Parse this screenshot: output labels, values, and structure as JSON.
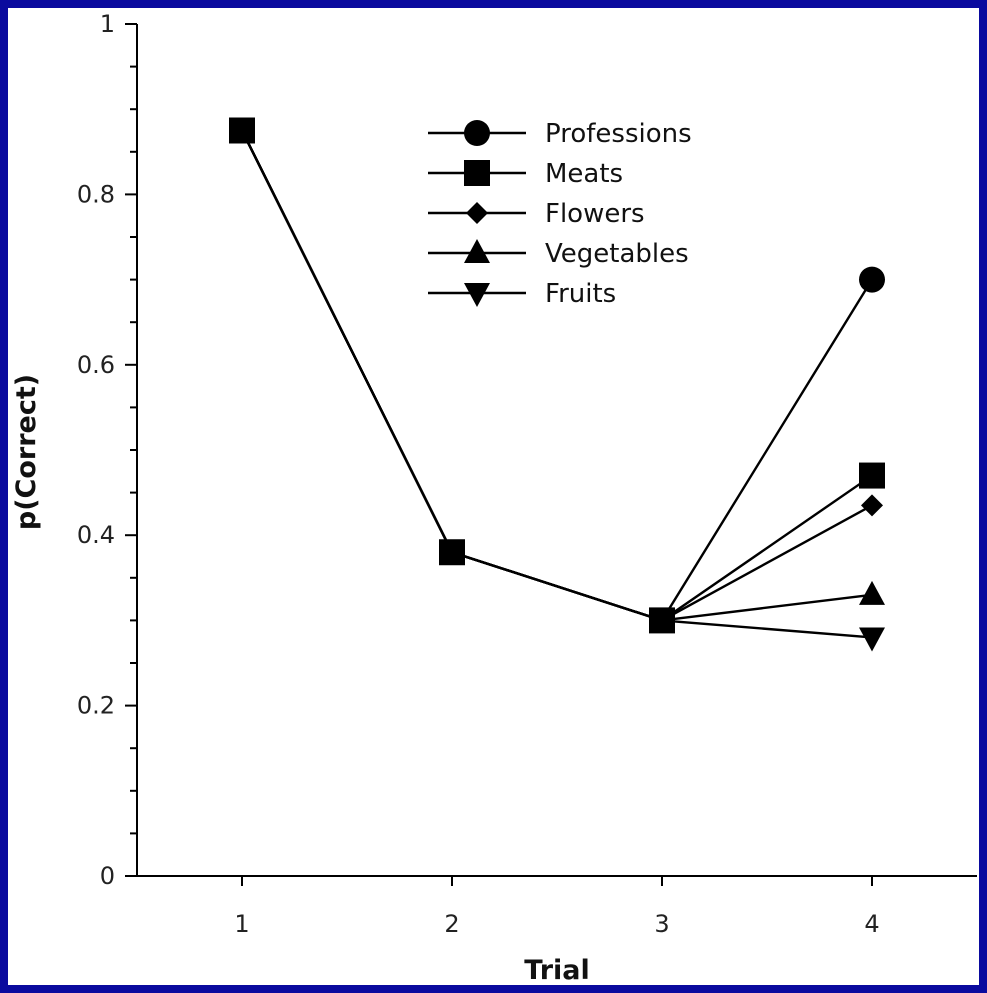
{
  "chart_data": {
    "type": "line",
    "xlabel": "Trial",
    "ylabel": "p(Correct)",
    "x": [
      1,
      2,
      3,
      4
    ],
    "xlim": [
      0.5,
      4.5
    ],
    "ylim": [
      0,
      1
    ],
    "yticks": [
      0,
      0.2,
      0.4,
      0.6,
      0.8,
      1
    ],
    "ytick_labels": [
      "0",
      "0.2",
      "0.4",
      "0.6",
      "0.8",
      "1"
    ],
    "xtick_labels": [
      "1",
      "2",
      "3",
      "4"
    ],
    "legend_position": "top-center",
    "grid": false,
    "series": [
      {
        "name": "Professions",
        "marker": "circle",
        "values": [
          0.875,
          0.38,
          0.3,
          0.7
        ]
      },
      {
        "name": "Meats",
        "marker": "square",
        "values": [
          0.875,
          0.38,
          0.3,
          0.47
        ]
      },
      {
        "name": "Flowers",
        "marker": "diamond",
        "values": [
          0.875,
          0.38,
          0.3,
          0.435
        ]
      },
      {
        "name": "Vegetables",
        "marker": "triangle-up",
        "values": [
          0.875,
          0.38,
          0.3,
          0.33
        ]
      },
      {
        "name": "Fruits",
        "marker": "triangle-down",
        "values": [
          0.875,
          0.38,
          0.3,
          0.28
        ]
      }
    ]
  },
  "colors": {
    "border": "#0a0a9e",
    "ink": "#000000"
  }
}
